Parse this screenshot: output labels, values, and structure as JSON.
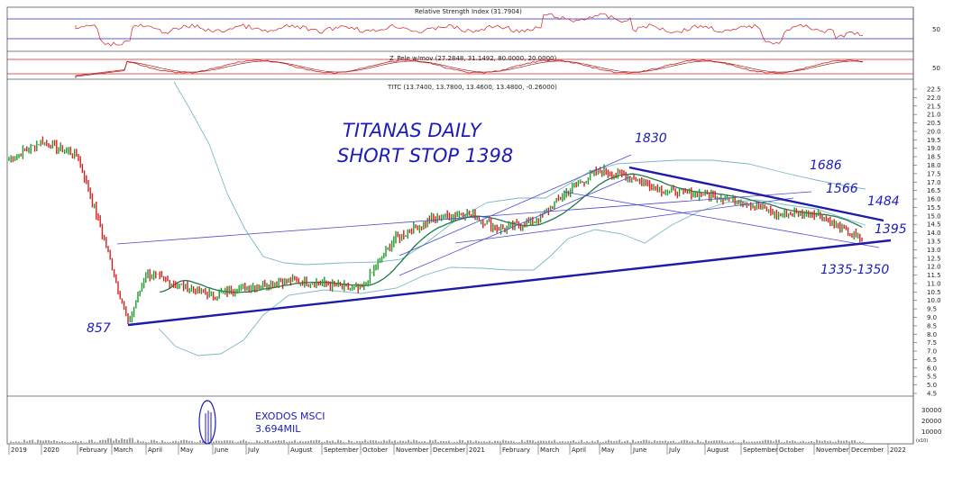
{
  "colors": {
    "up": "#1f9a2a",
    "down": "#d42020",
    "rsi": "#d42020",
    "ma": "#1e7a4a",
    "band": "#7ab8c2",
    "ink": "#1c1cb8",
    "panel_line": "#2a2ab0",
    "thin_line": "#4a4ad0"
  },
  "panels": {
    "rsi_label": "Relative Strength Index (31.7904)",
    "rsi_level": "50",
    "pele_label": "Z_Pele w/mov (27.2848, 31.1492, 80.0000, 20.0000)",
    "pele_level": "50",
    "price_label": "TITC (13.7400, 13.7800, 13.4600, 13.4800, -0.26000)",
    "volume_ticks": [
      "30000",
      "20000",
      "10000"
    ],
    "volume_unit": "(x10)"
  },
  "annotations": {
    "title_line1": "TITANAS DAILY",
    "title_line2": "SHORT STOP 1398",
    "low_857": "857",
    "level_1830": "1830",
    "level_1686": "1686",
    "level_1566": "1566",
    "level_1484": "1484",
    "level_1395": "1395",
    "support_range": "1335-1350",
    "volume_note1": "EXODOS MSCI",
    "volume_note2": "3.694MIL"
  },
  "chart_data": {
    "type": "line",
    "title": "",
    "series_name": "TITC",
    "y_axis_ticks": [
      "22.5",
      "22.0",
      "21.5",
      "21.0",
      "20.5",
      "20.0",
      "19.5",
      "19.0",
      "18.5",
      "18.0",
      "17.5",
      "17.0",
      "16.5",
      "16.0",
      "15.5",
      "15.0",
      "14.5",
      "14.0",
      "13.5",
      "13.0",
      "12.5",
      "12.0",
      "11.5",
      "11.0",
      "10.5",
      "10.0",
      "9.5",
      "9.0",
      "8.5",
      "8.0",
      "7.5",
      "7.0",
      "6.5",
      "6.0",
      "5.5",
      "5.0",
      "4.5"
    ],
    "ylim": [
      4.5,
      22.5
    ],
    "x_axis_ticks": [
      "2019",
      "2020",
      "February",
      "March",
      "April",
      "May",
      "June",
      "July",
      "August",
      "September",
      "October",
      "November",
      "December",
      "2021",
      "February",
      "March",
      "April",
      "May",
      "June",
      "July",
      "August",
      "September",
      "October",
      "November",
      "December",
      "2022"
    ],
    "x": [
      "2019-12",
      "2020-01",
      "2020-02",
      "2020-03",
      "2020-03b",
      "2020-04",
      "2020-05",
      "2020-06",
      "2020-07",
      "2020-08",
      "2020-09",
      "2020-10",
      "2020-11",
      "2020-12",
      "2021-01",
      "2021-02",
      "2021-03",
      "2021-04",
      "2021-05",
      "2021-06",
      "2021-07",
      "2021-08",
      "2021-09",
      "2021-10",
      "2021-11",
      "2021-12"
    ],
    "close": [
      18.3,
      19.4,
      18.6,
      13.2,
      8.6,
      11.6,
      10.9,
      10.3,
      10.8,
      11.2,
      11.0,
      10.6,
      13.6,
      14.8,
      15.2,
      14.2,
      14.8,
      16.6,
      17.7,
      17.3,
      16.4,
      16.3,
      15.9,
      15.1,
      15.2,
      13.5
    ],
    "trendlines": [
      {
        "name": "support",
        "from": [
          "2020-03",
          8.6
        ],
        "to": [
          "2021-12",
          13.5
        ]
      },
      {
        "name": "resistance",
        "from": [
          "2021-05",
          18.0
        ],
        "to": [
          "2021-12",
          14.8
        ]
      }
    ],
    "rsi": {
      "last": 31.7904,
      "level": 50
    },
    "volume": {
      "max_tick": 30000,
      "spike_month": "2020-05",
      "spike_note": "3.694MIL"
    }
  }
}
